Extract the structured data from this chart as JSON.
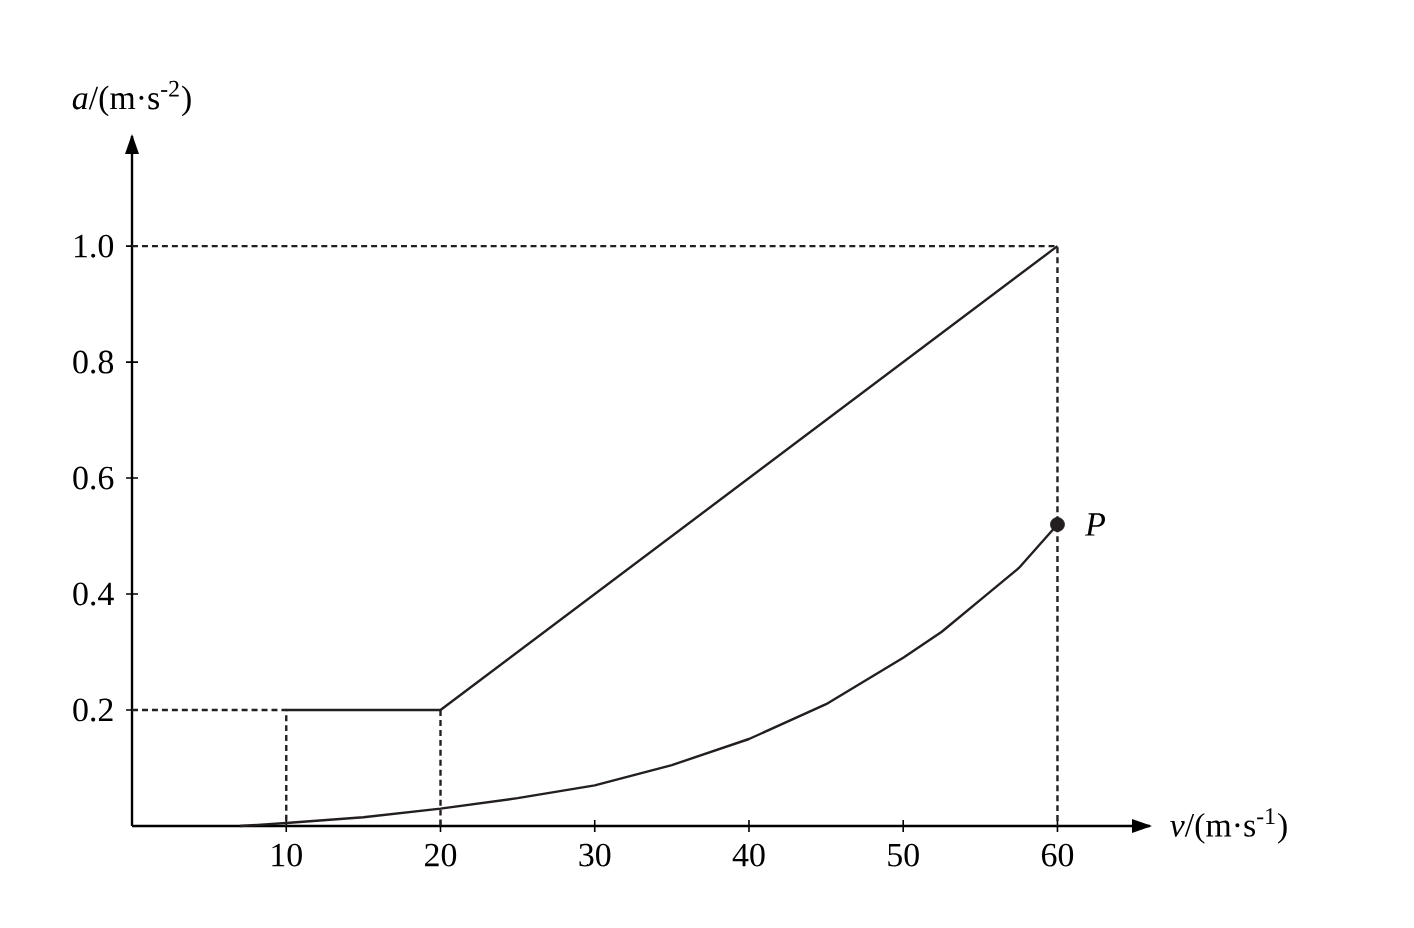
{
  "chart_data": {
    "type": "line",
    "xlabel": "*v*/(m·s$^{-1}$)",
    "ylabel": "*a*/(m·s$^{-2}$)",
    "xlim": [
      0,
      66
    ],
    "ylim": [
      0,
      1.19
    ],
    "xticks": [
      10,
      20,
      30,
      40,
      50,
      60
    ],
    "yticks": [
      0.2,
      0.4,
      0.6,
      0.8,
      {
        "value": 1.0,
        "label": "1.0"
      }
    ],
    "marker": "none",
    "series": [
      {
        "color": "#231f20",
        "x": [
          10,
          20,
          60
        ],
        "values": [
          0.2,
          0.2,
          1.0
        ]
      },
      {
        "color": "#231f20",
        "x": [
          7,
          10,
          15,
          20,
          25,
          30,
          35,
          40,
          45,
          50,
          52.5,
          55,
          57.5,
          60
        ],
        "values": [
          0,
          0.005,
          0.015,
          0.03,
          0.048,
          0.07,
          0.105,
          0.15,
          0.21,
          0.29,
          0.335,
          0.39,
          0.445,
          0.52
        ]
      },
      {
        "line_style": "dashed",
        "color": "#231f20",
        "x": [
          0,
          60,
          60
        ],
        "values": [
          1.0,
          1.0,
          0
        ]
      },
      {
        "line_style": "dashed",
        "color": "#231f20",
        "x": [
          0,
          10,
          10
        ],
        "values": [
          0.2,
          0.2,
          0
        ]
      },
      {
        "line_style": "dashed",
        "color": "#231f20",
        "x": [
          20,
          20
        ],
        "values": [
          0.2,
          0
        ]
      },
      {
        "type": "scatter",
        "marker": "circle",
        "color": "#231f20",
        "x": [
          60
        ],
        "values": [
          0.52
        ]
      }
    ],
    "annotations": [
      {
        "text": "P",
        "x": 60,
        "y": 0.52
      }
    ]
  }
}
